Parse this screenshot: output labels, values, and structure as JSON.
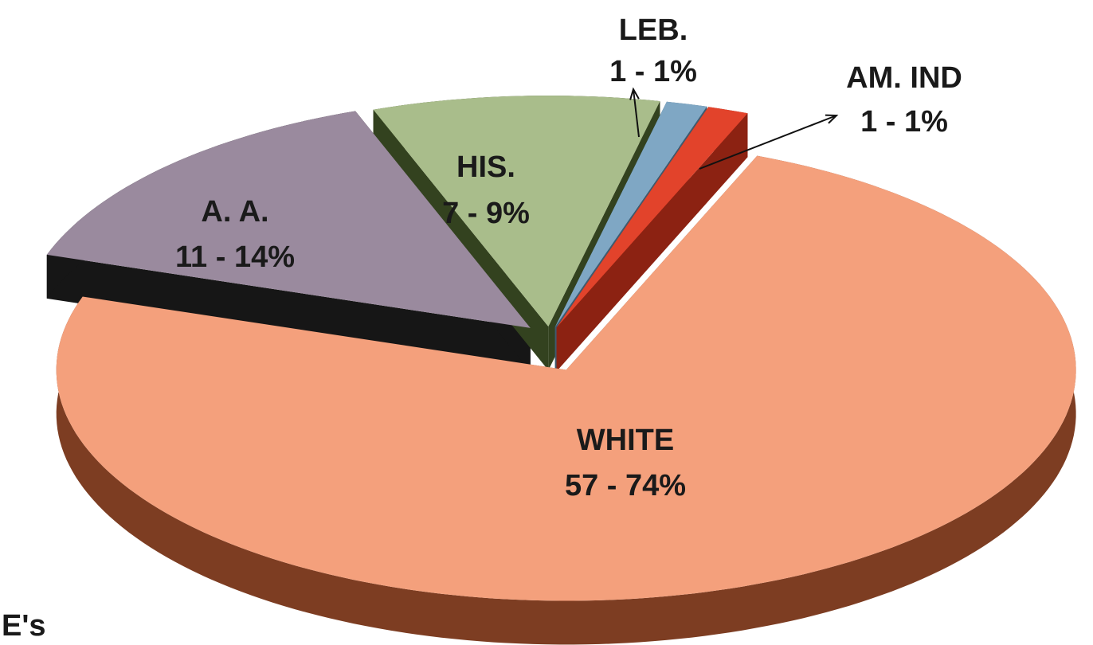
{
  "chart_data": {
    "type": "pie3d",
    "categories": [
      "WHITE",
      "A. A.",
      "HIS.",
      "LEB.",
      "AM. IND"
    ],
    "values": [
      57,
      11,
      7,
      1,
      1
    ],
    "value_labels": [
      "57 - 74%",
      "11 - 14%",
      "7 - 9%",
      "1 - 1%",
      "1 - 1%"
    ],
    "colors": [
      "#f4a07c",
      "#9a8a9e",
      "#a9bd8b",
      "#7fa7c4",
      "#e2432b"
    ],
    "side_colors": [
      "#7d3d22",
      "#161616",
      "#33421f",
      "#3e5b70",
      "#8c2212"
    ],
    "footnote": "E's"
  }
}
